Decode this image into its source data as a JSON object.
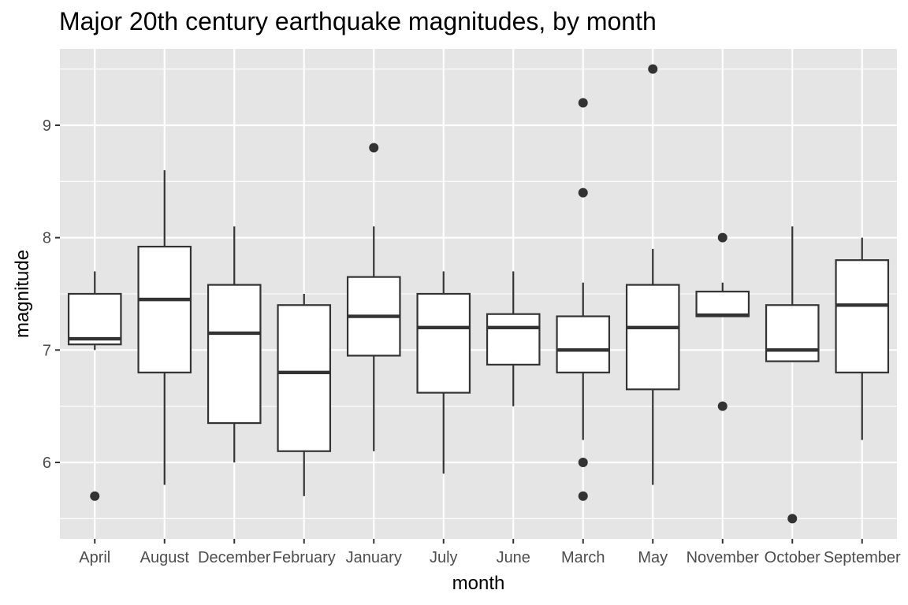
{
  "chart_data": {
    "type": "boxplot",
    "title": "Major 20th century earthquake magnitudes, by month",
    "xlabel": "month",
    "ylabel": "magnitude",
    "ylim": [
      5.32,
      9.68
    ],
    "yticks": [
      6,
      7,
      8,
      9
    ],
    "grid": true,
    "categories": [
      "April",
      "August",
      "December",
      "February",
      "January",
      "July",
      "June",
      "March",
      "May",
      "November",
      "October",
      "September"
    ],
    "boxes": [
      {
        "low": 7.0,
        "q1": 7.05,
        "median": 7.1,
        "q3": 7.5,
        "high": 7.7,
        "outliers": [
          5.7
        ]
      },
      {
        "low": 5.8,
        "q1": 6.8,
        "median": 7.45,
        "q3": 7.92,
        "high": 8.6,
        "outliers": []
      },
      {
        "low": 6.0,
        "q1": 6.35,
        "median": 7.15,
        "q3": 7.58,
        "high": 8.1,
        "outliers": []
      },
      {
        "low": 5.7,
        "q1": 6.1,
        "median": 6.8,
        "q3": 7.4,
        "high": 7.5,
        "outliers": []
      },
      {
        "low": 6.1,
        "q1": 6.95,
        "median": 7.3,
        "q3": 7.65,
        "high": 8.1,
        "outliers": [
          8.8
        ]
      },
      {
        "low": 5.9,
        "q1": 6.62,
        "median": 7.2,
        "q3": 7.5,
        "high": 7.7,
        "outliers": []
      },
      {
        "low": 6.5,
        "q1": 6.87,
        "median": 7.2,
        "q3": 7.32,
        "high": 7.7,
        "outliers": []
      },
      {
        "low": 6.2,
        "q1": 6.8,
        "median": 7.0,
        "q3": 7.3,
        "high": 7.6,
        "outliers": [
          9.2,
          8.4,
          6.0,
          5.7
        ]
      },
      {
        "low": 5.8,
        "q1": 6.65,
        "median": 7.2,
        "q3": 7.58,
        "high": 7.9,
        "outliers": [
          9.5
        ]
      },
      {
        "low": 7.3,
        "q1": 7.3,
        "median": 7.31,
        "q3": 7.52,
        "high": 7.6,
        "outliers": [
          8.0,
          6.5
        ]
      },
      {
        "low": 6.9,
        "q1": 6.9,
        "median": 7.0,
        "q3": 7.4,
        "high": 8.1,
        "outliers": [
          5.5
        ]
      },
      {
        "low": 6.2,
        "q1": 6.8,
        "median": 7.4,
        "q3": 7.8,
        "high": 8.0,
        "outliers": []
      }
    ]
  }
}
